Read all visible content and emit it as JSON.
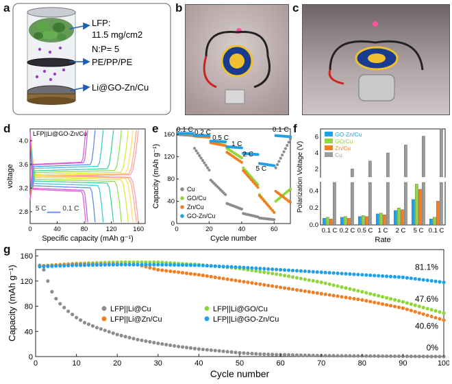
{
  "panels": {
    "a": {
      "label": "a",
      "text": {
        "lfp_line1": "LFP:",
        "lfp_line2": "11.5 mg/cm2",
        "np": "N:P= 5",
        "separator": "PE/PP/PE",
        "anode": "Li@GO-Zn/Cu"
      }
    },
    "b": {
      "label": "b"
    },
    "c": {
      "label": "c"
    },
    "d": {
      "label": "d"
    },
    "e": {
      "label": "e"
    },
    "f": {
      "label": "f"
    },
    "g": {
      "label": "g"
    }
  },
  "colors": {
    "gray": "#8c8c8c",
    "green": "#8fd63a",
    "orange": "#f07f24",
    "blue": "#1fa0e8",
    "photo_bg": "#b9a9ab"
  },
  "chart_data": [
    {
      "id": "d",
      "type": "line",
      "title": "LFP||Li@GO-Zn/Cu",
      "xlabel": "Specific capacity (mAh g⁻¹)",
      "ylabel": "voltage",
      "xlim": [
        0,
        170
      ],
      "ylim": [
        2.6,
        4.2
      ],
      "xticks": [
        0,
        40,
        80,
        120,
        160
      ],
      "yticks": [
        2.8,
        3.2,
        3.6,
        4.0
      ],
      "rate_labels": [
        "5 C",
        "0.1 C"
      ],
      "series": [
        {
          "cap": 160,
          "color": "#ff9cbd",
          "ch": 3.41,
          "dis": 3.4
        },
        {
          "cap": 157,
          "color": "#ffb07a",
          "ch": 3.42,
          "dis": 3.39
        },
        {
          "cap": 152,
          "color": "#ffe066",
          "ch": 3.43,
          "dis": 3.38
        },
        {
          "cap": 145,
          "color": "#d8e84a",
          "ch": 3.45,
          "dis": 3.36
        },
        {
          "cap": 135,
          "color": "#93dd4e",
          "ch": 3.48,
          "dis": 3.33
        },
        {
          "cap": 123,
          "color": "#3ed1a0",
          "ch": 3.51,
          "dis": 3.3
        },
        {
          "cap": 108,
          "color": "#42c6e0",
          "ch": 3.55,
          "dis": 3.26
        },
        {
          "cap": 96,
          "color": "#5a8fe8",
          "ch": 3.58,
          "dis": 3.22
        },
        {
          "cap": 85,
          "color": "#b86be6",
          "ch": 3.61,
          "dis": 3.18
        },
        {
          "cap": 82,
          "color": "#e85cd0",
          "ch": 3.62,
          "dis": 3.16
        }
      ]
    },
    {
      "id": "e",
      "type": "scatter",
      "xlabel": "Cycle number",
      "ylabel": "Capacity (mAh g⁻¹)",
      "xlim": [
        0,
        70
      ],
      "ylim": [
        0,
        170
      ],
      "xticks": [
        0,
        20,
        40,
        60
      ],
      "yticks": [
        0,
        40,
        80,
        120,
        160
      ],
      "rate_annotations": [
        {
          "text": "0.1 C",
          "x": 5,
          "y": 165
        },
        {
          "text": "0.2 C",
          "x": 16,
          "y": 160
        },
        {
          "text": "0.5 C",
          "x": 27,
          "y": 150
        },
        {
          "text": "1 C",
          "x": 37,
          "y": 139
        },
        {
          "text": "2 C",
          "x": 44,
          "y": 121
        },
        {
          "text": "5 C",
          "x": 52,
          "y": 95
        },
        {
          "text": "0.1 C",
          "x": 64,
          "y": 165
        }
      ],
      "legend": [
        "Cu",
        "GO/Cu",
        "Zn/Cu",
        "GO-Zn/Cu"
      ],
      "series": [
        {
          "name": "Cu",
          "color": "#8c8c8c",
          "segments": [
            [
              1,
              10,
              160,
              158
            ],
            [
              11,
              20,
              135,
              96
            ],
            [
              21,
              30,
              78,
              52
            ],
            [
              31,
              40,
              36,
              26
            ],
            [
              41,
              50,
              18,
              12
            ],
            [
              51,
              60,
              10,
              7
            ],
            [
              61,
              70,
              100,
              152
            ]
          ]
        },
        {
          "name": "GO/Cu",
          "color": "#8fd63a",
          "segments": [
            [
              1,
              10,
              162,
              161
            ],
            [
              11,
              20,
              158,
              156
            ],
            [
              21,
              30,
              148,
              146
            ],
            [
              31,
              40,
              135,
              118
            ],
            [
              41,
              50,
              100,
              70
            ],
            [
              51,
              60,
              52,
              20
            ],
            [
              61,
              70,
              40,
              62
            ]
          ]
        },
        {
          "name": "Zn/Cu",
          "color": "#f07f24",
          "segments": [
            [
              1,
              10,
              162,
              161
            ],
            [
              11,
              20,
              157,
              155
            ],
            [
              21,
              30,
              145,
              140
            ],
            [
              31,
              40,
              128,
              110
            ],
            [
              41,
              50,
              95,
              65
            ],
            [
              51,
              60,
              50,
              20
            ],
            [
              61,
              70,
              58,
              38
            ]
          ]
        },
        {
          "name": "GO-Zn/Cu",
          "color": "#1fa0e8",
          "segments": [
            [
              1,
              10,
              162,
              162
            ],
            [
              11,
              20,
              158,
              158
            ],
            [
              21,
              30,
              148,
              147
            ],
            [
              31,
              40,
              138,
              136
            ],
            [
              41,
              50,
              126,
              124
            ],
            [
              51,
              60,
              108,
              104
            ],
            [
              61,
              70,
              158,
              156
            ]
          ]
        }
      ]
    },
    {
      "id": "f",
      "type": "bar",
      "xlabel": "Rate",
      "ylabel": "Polarization Voltage (V)",
      "categories": [
        "0.1 C",
        "0.2 C",
        "0.5 C",
        "1 C",
        "2 C",
        "5 C",
        "0.1 C"
      ],
      "lower_ylim": [
        0,
        0.5
      ],
      "upper_ylim": [
        1,
        7
      ],
      "lower_yticks": [
        0.0,
        0.2,
        0.4
      ],
      "upper_yticks": [
        2,
        4,
        6
      ],
      "legend": [
        "GO-Zn/Cu",
        "GO/Cu",
        "Zn/Cu",
        "Cu"
      ],
      "series": [
        {
          "name": "GO-Zn/Cu",
          "color": "#1fa0e8",
          "values": [
            0.08,
            0.09,
            0.1,
            0.13,
            0.17,
            0.3,
            0.07
          ]
        },
        {
          "name": "GO/Cu",
          "color": "#8fd63a",
          "values": [
            0.09,
            0.1,
            0.11,
            0.14,
            0.2,
            0.48,
            0.09
          ]
        },
        {
          "name": "Zn/Cu",
          "color": "#f07f24",
          "values": [
            0.07,
            0.08,
            0.1,
            0.12,
            0.18,
            0.42,
            0.28
          ]
        },
        {
          "name": "Cu",
          "color": "#9a9a9a",
          "values": [
            1.0,
            2.0,
            3.0,
            4.0,
            5.0,
            6.1,
            7.0
          ]
        }
      ]
    },
    {
      "id": "g",
      "type": "scatter",
      "xlabel": "Cycle number",
      "ylabel": "Capacity (mAh g⁻¹)",
      "xlim": [
        0,
        100
      ],
      "ylim": [
        0,
        170
      ],
      "xticks": [
        0,
        10,
        20,
        30,
        40,
        50,
        60,
        70,
        80,
        90,
        100
      ],
      "yticks": [
        0,
        40,
        80,
        120,
        160
      ],
      "legend": [
        "LFP||Li@Cu",
        "LFP||Li@GO/Cu",
        "LFP||Li@Zn/Cu",
        "LFP||Li@GO-Zn/Cu"
      ],
      "retention_labels": [
        {
          "text": "81.1%",
          "y": 138
        },
        {
          "text": "47.6%",
          "y": 87
        },
        {
          "text": "40.6%",
          "y": 44
        },
        {
          "text": "0%",
          "y": 10
        }
      ],
      "series": [
        {
          "name": "LFP||Li@Cu",
          "color": "#8c8c8c",
          "points": [
            [
              1,
              145
            ],
            [
              2,
              138
            ],
            [
              3,
              120
            ],
            [
              4,
              103
            ],
            [
              5,
              92
            ],
            [
              6,
              84
            ],
            [
              8,
              72
            ],
            [
              10,
              62
            ],
            [
              12,
              54
            ],
            [
              15,
              46
            ],
            [
              20,
              35
            ],
            [
              25,
              27
            ],
            [
              30,
              21
            ],
            [
              35,
              16
            ],
            [
              40,
              12
            ],
            [
              45,
              9
            ],
            [
              50,
              6
            ],
            [
              55,
              4
            ],
            [
              60,
              3
            ],
            [
              70,
              1.5
            ],
            [
              80,
              1
            ],
            [
              90,
              0.5
            ],
            [
              100,
              0
            ]
          ]
        },
        {
          "name": "LFP||Li@GO/Cu",
          "color": "#8fd63a",
          "points": [
            [
              1,
              144
            ],
            [
              10,
              148
            ],
            [
              20,
              150
            ],
            [
              30,
              150
            ],
            [
              40,
              146
            ],
            [
              50,
              140
            ],
            [
              60,
              130
            ],
            [
              70,
              118
            ],
            [
              80,
              103
            ],
            [
              90,
              87
            ],
            [
              100,
              69
            ]
          ]
        },
        {
          "name": "LFP||Li@Zn/Cu",
          "color": "#f07f24",
          "points": [
            [
              1,
              144
            ],
            [
              10,
              147
            ],
            [
              20,
              147
            ],
            [
              25,
              146
            ],
            [
              30,
              138
            ],
            [
              40,
              130
            ],
            [
              50,
              120
            ],
            [
              60,
              110
            ],
            [
              70,
              100
            ],
            [
              80,
              90
            ],
            [
              90,
              77
            ],
            [
              100,
              58
            ]
          ]
        },
        {
          "name": "LFP||Li@GO-Zn/Cu",
          "color": "#1fa0e8",
          "points": [
            [
              1,
              143
            ],
            [
              10,
              145
            ],
            [
              20,
              146
            ],
            [
              30,
              146
            ],
            [
              40,
              145
            ],
            [
              50,
              142
            ],
            [
              60,
              138
            ],
            [
              70,
              134
            ],
            [
              80,
              130
            ],
            [
              90,
              126
            ],
            [
              100,
              118
            ]
          ]
        }
      ]
    }
  ]
}
